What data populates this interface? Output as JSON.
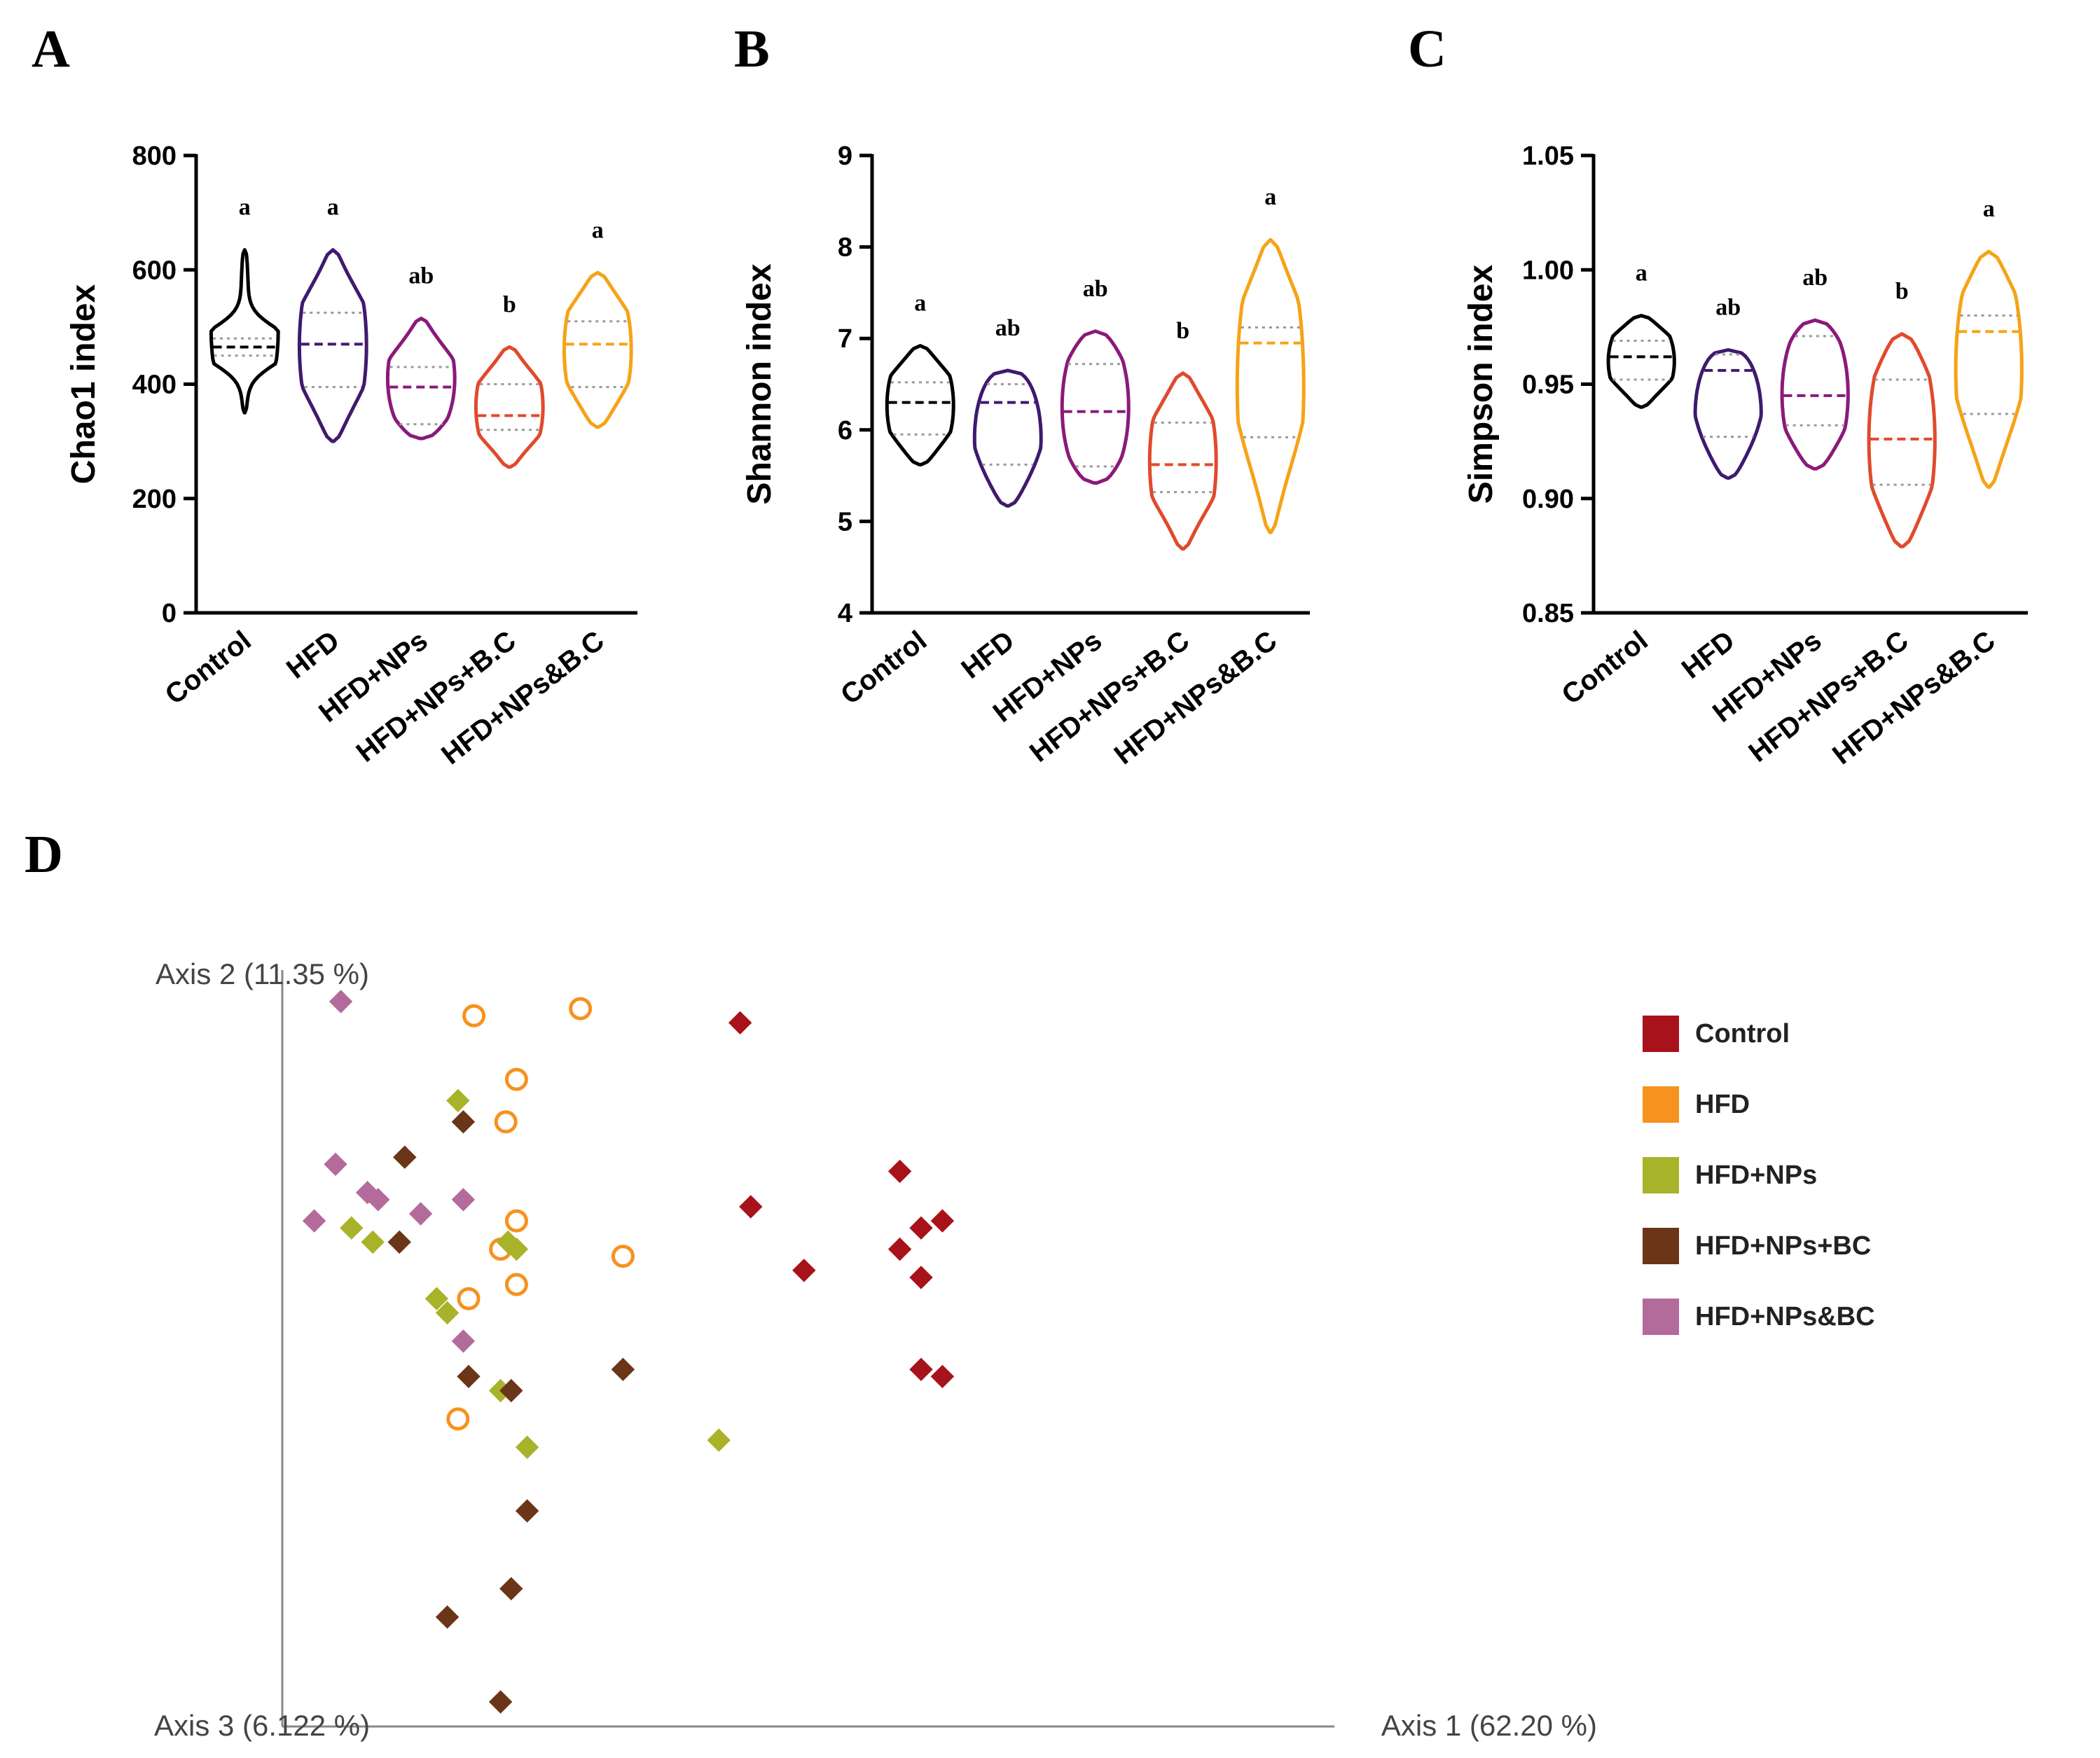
{
  "chart_data": [
    {
      "panel": "A",
      "type": "violin",
      "ylabel": "Chao1 index",
      "ylim": [
        0,
        800
      ],
      "yticks": [
        "0",
        "200",
        "400",
        "600",
        "800"
      ],
      "categories": [
        "Control",
        "HFD",
        "HFD+NPs",
        "HFD+NPs+B.C",
        "HFD+NPs&B.C"
      ],
      "colors": [
        "#000000",
        "#3f1a6e",
        "#8a1a7a",
        "#e04a2c",
        "#f5a318"
      ],
      "series": [
        {
          "name": "Control",
          "min": 350,
          "max": 635,
          "median": 465,
          "q1": 450,
          "q3": 480,
          "sig": "a"
        },
        {
          "name": "HFD",
          "min": 300,
          "max": 635,
          "median": 470,
          "q1": 395,
          "q3": 525,
          "sig": "a"
        },
        {
          "name": "HFD+NPs",
          "min": 305,
          "max": 515,
          "median": 395,
          "q1": 330,
          "q3": 430,
          "sig": "ab"
        },
        {
          "name": "HFD+NPs+B.C",
          "min": 255,
          "max": 465,
          "median": 345,
          "q1": 320,
          "q3": 400,
          "sig": "b"
        },
        {
          "name": "HFD+NPs&B.C",
          "min": 325,
          "max": 595,
          "median": 470,
          "q1": 395,
          "q3": 510,
          "sig": "a"
        }
      ]
    },
    {
      "panel": "B",
      "type": "violin",
      "ylabel": "Shannon index",
      "ylim": [
        4,
        9
      ],
      "yticks": [
        "4",
        "5",
        "6",
        "7",
        "8",
        "9"
      ],
      "categories": [
        "Control",
        "HFD",
        "HFD+NPs",
        "HFD+NPs+B.C",
        "HFD+NPs&B.C"
      ],
      "colors": [
        "#000000",
        "#3f1a6e",
        "#8a1a7a",
        "#e04a2c",
        "#f5a318"
      ],
      "series": [
        {
          "name": "Control",
          "min": 5.62,
          "max": 6.92,
          "median": 6.3,
          "q1": 5.95,
          "q3": 6.52,
          "sig": "a"
        },
        {
          "name": "HFD",
          "min": 5.17,
          "max": 6.65,
          "median": 6.3,
          "q1": 5.62,
          "q3": 6.5,
          "sig": "ab"
        },
        {
          "name": "HFD+NPs",
          "min": 5.42,
          "max": 7.08,
          "median": 6.2,
          "q1": 5.6,
          "q3": 6.72,
          "sig": "ab"
        },
        {
          "name": "HFD+NPs+B.C",
          "min": 4.7,
          "max": 6.62,
          "median": 5.62,
          "q1": 5.32,
          "q3": 6.08,
          "sig": "b"
        },
        {
          "name": "HFD+NPs&B.C",
          "min": 4.88,
          "max": 8.08,
          "median": 6.95,
          "q1": 5.92,
          "q3": 7.12,
          "sig": "a"
        }
      ]
    },
    {
      "panel": "C",
      "type": "violin",
      "ylabel": "Simpson index",
      "ylim": [
        0.85,
        1.05
      ],
      "yticks": [
        "0.85",
        "0.90",
        "0.95",
        "1.00",
        "1.05"
      ],
      "categories": [
        "Control",
        "HFD",
        "HFD+NPs",
        "HFD+NPs+B.C",
        "HFD+NPs&B.C"
      ],
      "colors": [
        "#000000",
        "#3f1a6e",
        "#8a1a7a",
        "#e04a2c",
        "#f5a318"
      ],
      "series": [
        {
          "name": "Control",
          "min": 0.94,
          "max": 0.98,
          "median": 0.962,
          "q1": 0.952,
          "q3": 0.969,
          "sig": "a"
        },
        {
          "name": "HFD",
          "min": 0.909,
          "max": 0.965,
          "median": 0.956,
          "q1": 0.927,
          "q3": 0.963,
          "sig": "ab"
        },
        {
          "name": "HFD+NPs",
          "min": 0.913,
          "max": 0.978,
          "median": 0.945,
          "q1": 0.932,
          "q3": 0.971,
          "sig": "ab"
        },
        {
          "name": "HFD+NPs+B.C",
          "min": 0.879,
          "max": 0.972,
          "median": 0.926,
          "q1": 0.906,
          "q3": 0.952,
          "sig": "b"
        },
        {
          "name": "HFD+NPs&B.C",
          "min": 0.905,
          "max": 1.008,
          "median": 0.973,
          "q1": 0.937,
          "q3": 0.98,
          "sig": "a"
        }
      ]
    },
    {
      "panel": "D",
      "type": "scatter",
      "xlabel": "Axis 1 (62.20 %)",
      "ylabel": "Axis 2 (11.35 %)",
      "zlabel": "Axis 3 (6.122 %)",
      "xlim": [
        0,
        100
      ],
      "ylim": [
        0,
        100
      ],
      "legend_position": "right",
      "series": [
        {
          "name": "Control",
          "color": "#a8121b",
          "marker": "diamond",
          "points": [
            [
              43,
              97
            ],
            [
              58,
              76
            ],
            [
              44,
              71
            ],
            [
              62,
              69
            ],
            [
              60,
              68
            ],
            [
              58,
              65
            ],
            [
              49,
              62
            ],
            [
              60,
              61
            ],
            [
              60,
              48
            ],
            [
              62,
              47
            ]
          ]
        },
        {
          "name": "HFD",
          "color": "#f6921e",
          "marker": "circle",
          "points": [
            [
              18,
              98
            ],
            [
              28,
              99
            ],
            [
              22,
              89
            ],
            [
              21,
              83
            ],
            [
              22,
              69
            ],
            [
              20.5,
              65
            ],
            [
              32,
              64
            ],
            [
              22,
              60
            ],
            [
              17.5,
              58
            ],
            [
              16.5,
              41
            ]
          ]
        },
        {
          "name": "HFD+NPs",
          "color": "#a8b32a",
          "marker": "diamond",
          "points": [
            [
              16.5,
              86
            ],
            [
              6.5,
              68
            ],
            [
              8.5,
              66
            ],
            [
              21.2,
              66
            ],
            [
              22,
              65
            ],
            [
              14.5,
              58
            ],
            [
              15.5,
              56
            ],
            [
              20.5,
              45
            ],
            [
              23,
              37
            ],
            [
              41,
              38
            ]
          ]
        },
        {
          "name": "HFD+NPs+BC",
          "color": "#6b3518",
          "marker": "diamond",
          "points": [
            [
              17,
              83
            ],
            [
              11.5,
              78
            ],
            [
              11,
              66
            ],
            [
              17.5,
              47
            ],
            [
              21.5,
              45
            ],
            [
              32,
              48
            ],
            [
              23,
              28
            ],
            [
              21.5,
              17
            ],
            [
              15.5,
              13
            ],
            [
              20.5,
              1
            ]
          ]
        },
        {
          "name": "HFD+NPs&BC",
          "color": "#b36b9c",
          "marker": "diamond",
          "points": [
            [
              5.5,
              100
            ],
            [
              5,
              77
            ],
            [
              8,
              73
            ],
            [
              9,
              72
            ],
            [
              17,
              72
            ],
            [
              13,
              70
            ],
            [
              3,
              69
            ],
            [
              17,
              52
            ]
          ]
        }
      ]
    }
  ]
}
